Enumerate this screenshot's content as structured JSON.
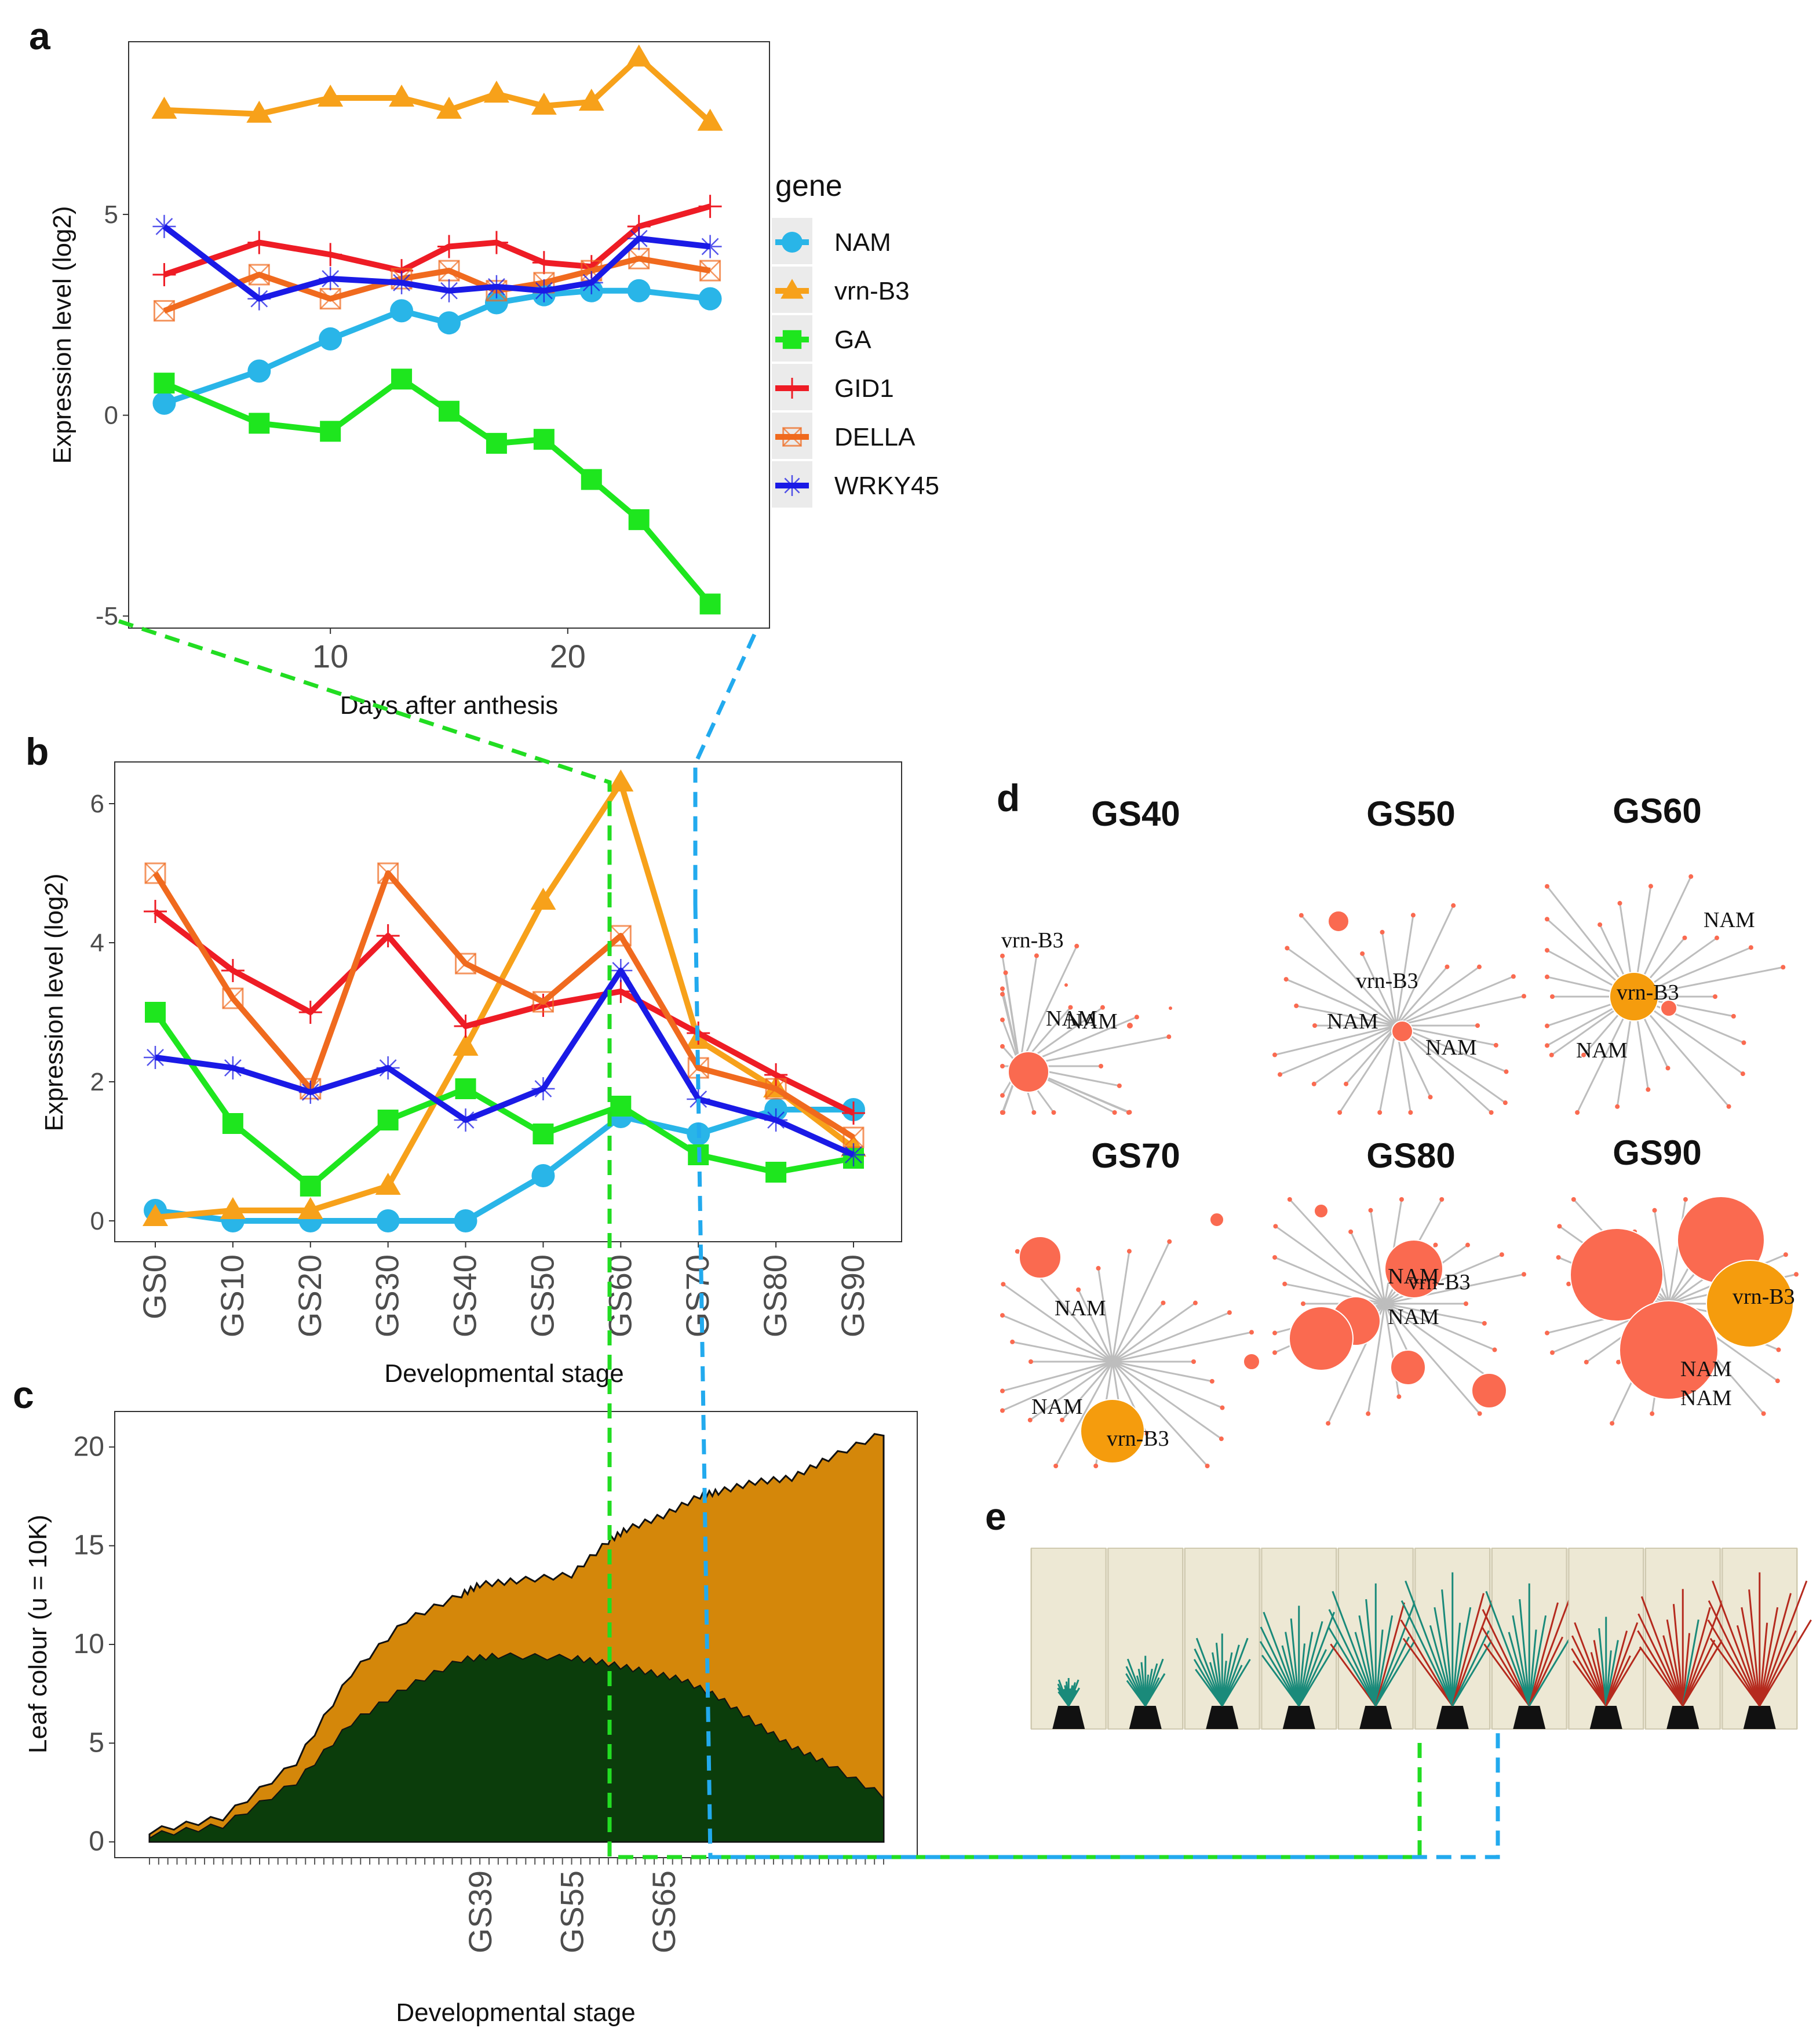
{
  "figure": {
    "panel_letters": {
      "a": "a",
      "b": "b",
      "c": "c",
      "d": "d",
      "e": "e"
    }
  },
  "colors": {
    "NAM": "#29b5e8",
    "vrn-B3": "#f7a11a",
    "GA": "#1ee61e",
    "GID1": "#ee1c25",
    "DELLA": "#f06a1e",
    "WRKY45": "#1a1ae6",
    "green_path": "#22dd22",
    "blue_path": "#22aaee",
    "area_total": "#d4870a",
    "area_green": "#0b3d0b",
    "node": "#fa6a50",
    "node_hub": "#f59c0d",
    "edge": "#bdbdbd"
  },
  "chart_data": [
    {
      "id": "a",
      "type": "line",
      "title": "",
      "xlabel": "Days after anthesis",
      "ylabel": "Expression level (log2)",
      "xlim": [
        1.5,
        28.5
      ],
      "ylim": [
        -5.3,
        9.3
      ],
      "xticks": [
        10,
        20
      ],
      "yticks": [
        -5,
        0,
        5
      ],
      "legend_title": "gene",
      "legend_position": "right",
      "x": [
        3,
        7,
        10,
        13,
        15,
        17,
        19,
        21,
        23,
        26
      ],
      "series": [
        {
          "name": "NAM",
          "marker": "circle",
          "values": [
            0.3,
            1.1,
            1.9,
            2.6,
            2.3,
            2.8,
            3.0,
            3.1,
            3.1,
            2.9
          ]
        },
        {
          "name": "vrn-B3",
          "marker": "triangle",
          "values": [
            7.6,
            7.5,
            7.9,
            7.9,
            7.6,
            8.0,
            7.7,
            7.8,
            8.9,
            7.3
          ]
        },
        {
          "name": "GA",
          "marker": "square",
          "values": [
            0.8,
            -0.2,
            -0.4,
            0.9,
            0.1,
            -0.7,
            -0.6,
            -1.6,
            -2.6,
            -4.7
          ]
        },
        {
          "name": "GID1",
          "marker": "plus",
          "values": [
            3.5,
            4.3,
            4.0,
            3.6,
            4.2,
            4.3,
            3.8,
            3.7,
            4.7,
            5.2
          ]
        },
        {
          "name": "DELLA",
          "marker": "boxcross",
          "values": [
            2.6,
            3.5,
            2.9,
            3.4,
            3.6,
            3.1,
            3.3,
            3.6,
            3.9,
            3.6
          ]
        },
        {
          "name": "WRKY45",
          "marker": "star",
          "values": [
            4.7,
            2.9,
            3.4,
            3.3,
            3.1,
            3.2,
            3.1,
            3.3,
            4.4,
            4.2
          ]
        }
      ]
    },
    {
      "id": "b",
      "type": "line",
      "title": "",
      "xlabel": "Developmental stage",
      "ylabel": "Expression level (log2)",
      "ylim": [
        -0.3,
        6.6
      ],
      "yticks": [
        0,
        2,
        4,
        6
      ],
      "categories": [
        "GS0",
        "GS10",
        "GS20",
        "GS30",
        "GS40",
        "GS50",
        "GS60",
        "GS70",
        "GS80",
        "GS90"
      ],
      "series": [
        {
          "name": "NAM",
          "marker": "circle",
          "values": [
            0.15,
            0.0,
            0.0,
            0.0,
            0.0,
            0.65,
            1.5,
            1.25,
            1.6,
            1.6
          ]
        },
        {
          "name": "vrn-B3",
          "marker": "triangle",
          "values": [
            0.05,
            0.15,
            0.15,
            0.5,
            2.5,
            4.6,
            6.3,
            2.6,
            1.9,
            1.05
          ]
        },
        {
          "name": "GA",
          "marker": "square",
          "values": [
            3.0,
            1.4,
            0.5,
            1.45,
            1.9,
            1.25,
            1.65,
            0.95,
            0.7,
            0.9
          ]
        },
        {
          "name": "GID1",
          "marker": "plus",
          "values": [
            4.45,
            3.6,
            3.0,
            4.1,
            2.8,
            3.1,
            3.3,
            2.7,
            2.1,
            1.55
          ]
        },
        {
          "name": "DELLA",
          "marker": "boxcross",
          "values": [
            5.0,
            3.2,
            1.9,
            5.0,
            3.7,
            3.15,
            4.1,
            2.2,
            1.9,
            1.2
          ]
        },
        {
          "name": "WRKY45",
          "marker": "star",
          "values": [
            2.35,
            2.2,
            1.85,
            2.2,
            1.45,
            1.9,
            3.6,
            1.75,
            1.45,
            0.95
          ]
        }
      ]
    },
    {
      "id": "c",
      "type": "area",
      "title": "",
      "xlabel": "Developmental stage",
      "ylabel": "Leaf colour (u = 10K)",
      "ylim": [
        -0.8,
        21.8
      ],
      "yticks": [
        0,
        5,
        10,
        15,
        20
      ],
      "x_count": 80,
      "labeled_ticks": [
        {
          "index": 36,
          "label": "GS39"
        },
        {
          "index": 46,
          "label": "GS55"
        },
        {
          "index": 56,
          "label": "GS65"
        }
      ],
      "series": [
        {
          "name": "total",
          "x": [
            0,
            8,
            16,
            22,
            28,
            34,
            36,
            40,
            46,
            50,
            52,
            56,
            60,
            62,
            66,
            70,
            74,
            80
          ],
          "values": [
            0.5,
            1.2,
            4.0,
            8.5,
            11.2,
            12.5,
            13.0,
            13.2,
            13.5,
            15.2,
            15.8,
            16.5,
            17.5,
            17.7,
            18.2,
            18.4,
            19.4,
            20.7
          ]
        },
        {
          "name": "green",
          "x": [
            0,
            8,
            16,
            22,
            28,
            34,
            38,
            46,
            50,
            54,
            58,
            62,
            66,
            70,
            74,
            80
          ],
          "values": [
            0.3,
            0.8,
            3.0,
            6.0,
            7.8,
            9.2,
            9.4,
            9.3,
            9.0,
            8.6,
            8.2,
            7.3,
            6.0,
            4.8,
            3.9,
            2.3
          ]
        }
      ]
    }
  ],
  "network": {
    "panels": [
      {
        "title": "GS40",
        "labels": [
          "vrn-B3",
          "NAM",
          "NAM"
        ]
      },
      {
        "title": "GS50",
        "labels": [
          "vrn-B3",
          "NAM",
          "NAM"
        ]
      },
      {
        "title": "GS60",
        "labels": [
          "NAM",
          "vrn-B3",
          "NAM"
        ]
      },
      {
        "title": "GS70",
        "labels": [
          "NAM",
          "NAM",
          "vrn-B3"
        ]
      },
      {
        "title": "GS80",
        "labels": [
          "NAM",
          "vrn-B3",
          "NAM"
        ]
      },
      {
        "title": "GS90",
        "labels": [
          "vrn-B3",
          "NAM",
          "NAM"
        ]
      }
    ]
  },
  "photo_strip": {
    "frames": [
      {
        "green": 0.05,
        "red": 0.0
      },
      {
        "green": 0.25,
        "red": 0.0
      },
      {
        "green": 0.45,
        "red": 0.0
      },
      {
        "green": 0.7,
        "red": 0.0
      },
      {
        "green": 0.9,
        "red": 0.05
      },
      {
        "green": 1.0,
        "red": 0.15
      },
      {
        "green": 0.9,
        "red": 0.3
      },
      {
        "green": 0.5,
        "red": 0.6
      },
      {
        "green": 0.2,
        "red": 0.85
      },
      {
        "green": 0.05,
        "red": 1.0
      }
    ]
  }
}
